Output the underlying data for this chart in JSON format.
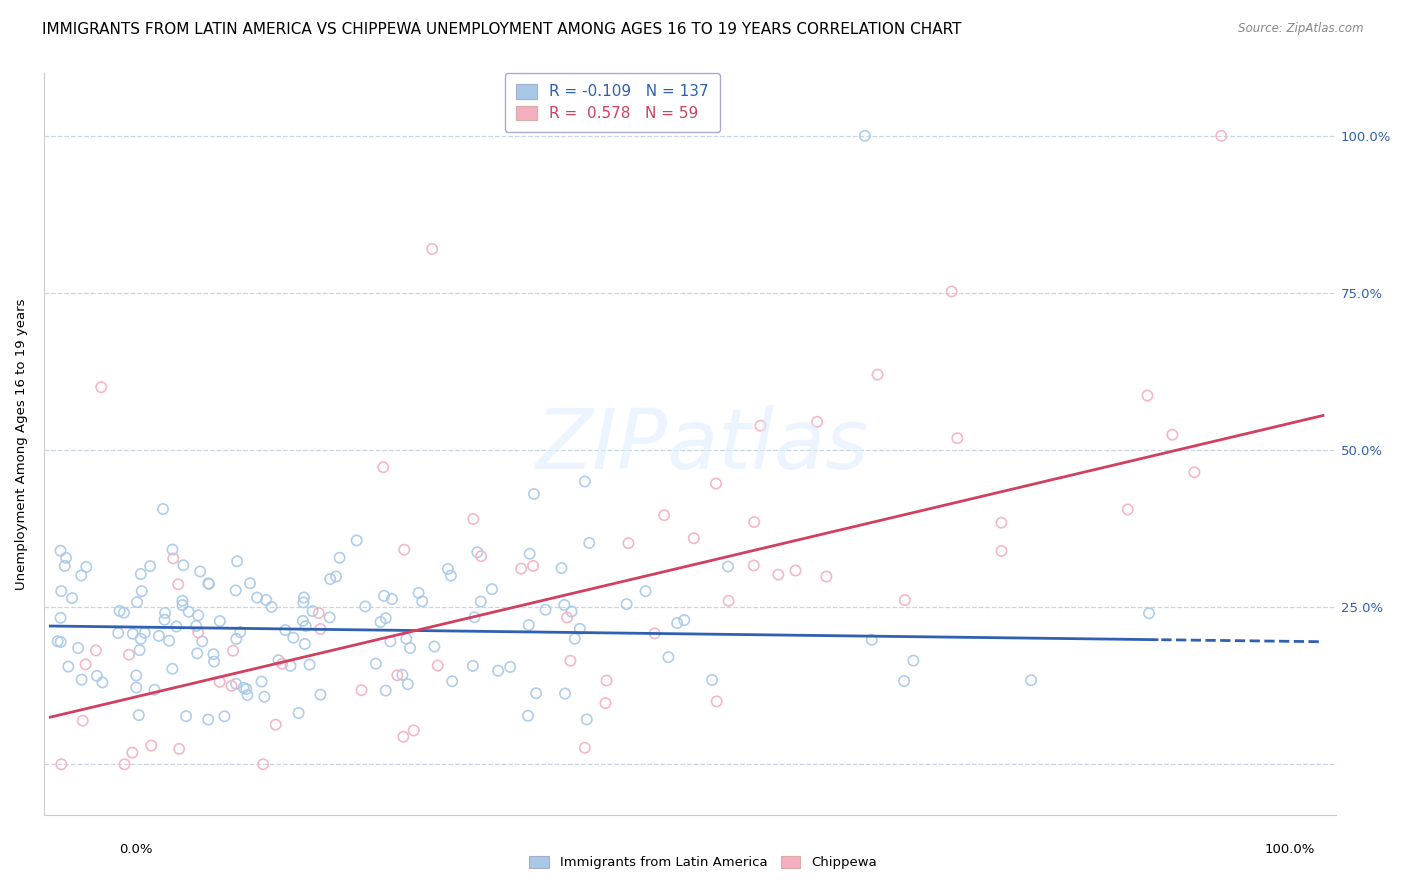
{
  "title": "IMMIGRANTS FROM LATIN AMERICA VS CHIPPEWA UNEMPLOYMENT AMONG AGES 16 TO 19 YEARS CORRELATION CHART",
  "source": "Source: ZipAtlas.com",
  "ylabel": "Unemployment Among Ages 16 to 19 years",
  "ytick_labels": [
    "",
    "25.0%",
    "50.0%",
    "75.0%",
    "100.0%"
  ],
  "ytick_values": [
    0.0,
    0.25,
    0.5,
    0.75,
    1.0
  ],
  "legend_blue_r": "-0.109",
  "legend_blue_n": "137",
  "legend_pink_r": "0.578",
  "legend_pink_n": "59",
  "blue_color": "#A8C8E8",
  "pink_color": "#F4B0C0",
  "blue_line_color": "#3060B0",
  "pink_line_color": "#D04060",
  "background_color": "#FFFFFF",
  "grid_color": "#C8D4E8",
  "title_fontsize": 11,
  "axis_fontsize": 9.5,
  "legend_label_blue": "Immigrants from Latin America",
  "legend_label_pink": "Chippewa",
  "blue_intercept": 0.22,
  "blue_slope": -0.025,
  "pink_intercept": 0.075,
  "pink_slope": 0.48,
  "seed": 7
}
